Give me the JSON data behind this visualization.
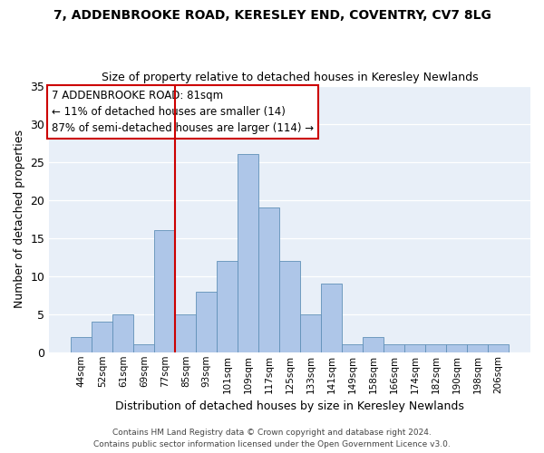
{
  "title1": "7, ADDENBROOKE ROAD, KERESLEY END, COVENTRY, CV7 8LG",
  "title2": "Size of property relative to detached houses in Keresley Newlands",
  "xlabel": "Distribution of detached houses by size in Keresley Newlands",
  "ylabel": "Number of detached properties",
  "categories": [
    "44sqm",
    "52sqm",
    "61sqm",
    "69sqm",
    "77sqm",
    "85sqm",
    "93sqm",
    "101sqm",
    "109sqm",
    "117sqm",
    "125sqm",
    "133sqm",
    "141sqm",
    "149sqm",
    "158sqm",
    "166sqm",
    "174sqm",
    "182sqm",
    "190sqm",
    "198sqm",
    "206sqm"
  ],
  "values": [
    2,
    4,
    5,
    1,
    16,
    5,
    8,
    12,
    26,
    19,
    12,
    5,
    9,
    1,
    2,
    1,
    1,
    1,
    1,
    1,
    1
  ],
  "bar_color": "#aec6e8",
  "bar_edge_color": "#6090b8",
  "vline_x": 4.5,
  "vline_color": "#cc0000",
  "annotation_line1": "7 ADDENBROOKE ROAD: 81sqm",
  "annotation_line2": "← 11% of detached houses are smaller (14)",
  "annotation_line3": "87% of semi-detached houses are larger (114) →",
  "annotation_box_color": "#cc0000",
  "ylim": [
    0,
    35
  ],
  "yticks": [
    0,
    5,
    10,
    15,
    20,
    25,
    30,
    35
  ],
  "fig_background_color": "#ffffff",
  "ax_background_color": "#e8eff8",
  "grid_color": "#ffffff",
  "footer1": "Contains HM Land Registry data © Crown copyright and database right 2024.",
  "footer2": "Contains public sector information licensed under the Open Government Licence v3.0."
}
